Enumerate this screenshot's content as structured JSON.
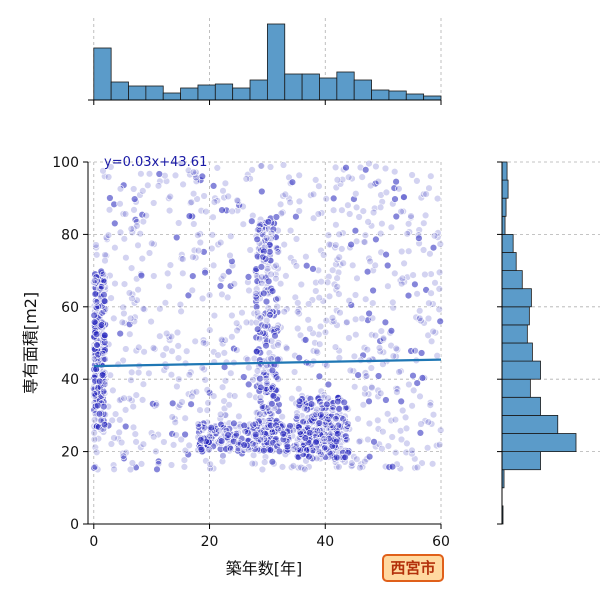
{
  "city_label": "西宮市",
  "chart_data": {
    "type": "scatter",
    "xlabel": "築年数[年]",
    "ylabel": "専有面積[m2]",
    "xlim": [
      -1,
      60
    ],
    "ylim": [
      0,
      100
    ],
    "x_ticks": [
      0,
      20,
      40,
      60
    ],
    "y_ticks": [
      0,
      20,
      40,
      60,
      80,
      100
    ],
    "grid": true,
    "regression": {
      "label": "y=0.03x+43.61",
      "slope": 0.03,
      "intercept": 43.61,
      "color": "#1f77b4",
      "label_color": "#1a1aa6"
    },
    "point_color": "#2222bb",
    "hist_color": "#5b9bc9",
    "x_hist": {
      "bin_edges": [
        0,
        3,
        6,
        9,
        12,
        15,
        18,
        21,
        24,
        27,
        30,
        33,
        36,
        39,
        42,
        45,
        48,
        51,
        54,
        57,
        60
      ],
      "counts": [
        52,
        18,
        14,
        14,
        7,
        12,
        15,
        16,
        12,
        20,
        76,
        26,
        26,
        22,
        28,
        20,
        10,
        9,
        6,
        4
      ]
    },
    "y_hist": {
      "bin_edges": [
        0,
        5,
        10,
        15,
        20,
        25,
        30,
        35,
        40,
        45,
        50,
        55,
        60,
        65,
        70,
        75,
        80,
        85,
        90,
        95,
        100
      ],
      "counts": [
        1,
        0,
        2,
        38,
        73,
        55,
        38,
        28,
        38,
        30,
        25,
        27,
        29,
        20,
        14,
        11,
        3,
        4,
        6,
        5
      ]
    },
    "dense_clusters": [
      {
        "x": [
          28,
          32
        ],
        "y": [
          20,
          85
        ]
      },
      {
        "x": [
          35,
          44
        ],
        "y": [
          18,
          35
        ]
      },
      {
        "x": [
          18,
          40
        ],
        "y": [
          20,
          28
        ]
      },
      {
        "x": [
          0,
          2
        ],
        "y": [
          25,
          70
        ]
      }
    ]
  }
}
